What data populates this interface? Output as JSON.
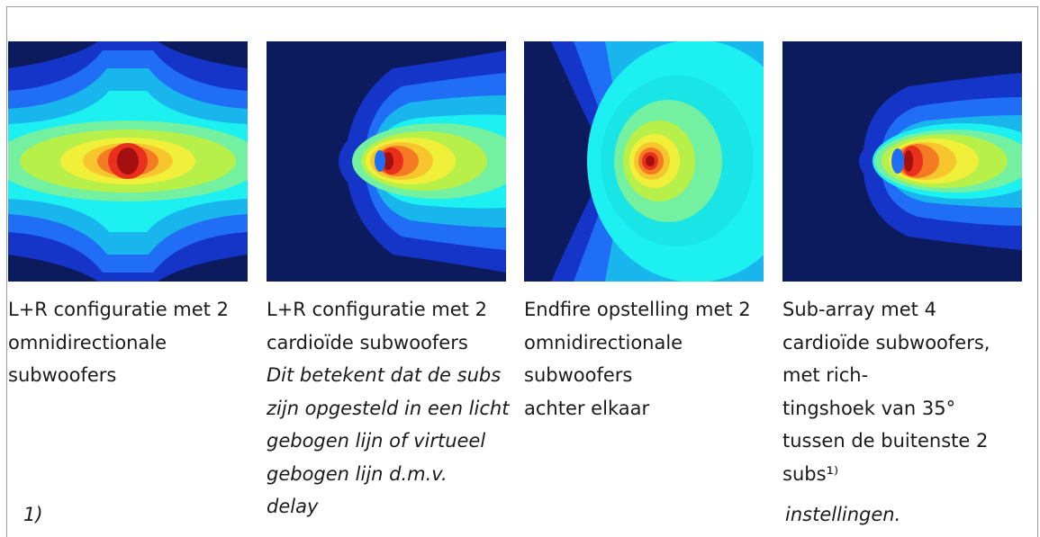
{
  "captions": [
    {
      "lines": [
        "L+R configuratie met 2",
        "omnidirectionale",
        "subwoofers"
      ],
      "italic_lines": []
    },
    {
      "lines": [
        "L+R configuratie met 2",
        "cardioïde subwoofers"
      ],
      "italic_lines": [
        "Dit betekent dat de subs",
        "zijn opgesteld in een licht",
        "gebogen lijn of virtueel",
        "gebogen lijn d.m.v.",
        "delay"
      ]
    },
    {
      "lines": [
        "Endfire opstelling met 2",
        "omnidirectionale",
        "subwoofers",
        "achter elkaar"
      ],
      "italic_lines": []
    },
    {
      "lines": [
        "Sub-array met 4",
        "cardioïde subwoofers,",
        "met rich-",
        "tingshoek van 35°",
        "tussen de buitenste 2",
        "subs¹⁾"
      ],
      "italic_lines": []
    }
  ],
  "footnote_left": "1)",
  "footnote_right": "instellingen.",
  "colors": {
    "background": "#0c1a5e",
    "levels": [
      "#0c1a5e",
      "#1534c8",
      "#1f6ef5",
      "#19b6ee",
      "#1cf0f0",
      "#73f0a0",
      "#b8f04a",
      "#f0f03a",
      "#f7c62c",
      "#f47a24",
      "#e8301c",
      "#a40f10"
    ]
  },
  "plots": [
    {
      "name": "lr-omni-plot"
    },
    {
      "name": "lr-cardioid-plot"
    },
    {
      "name": "endfire-plot"
    },
    {
      "name": "sub-array-plot"
    }
  ]
}
